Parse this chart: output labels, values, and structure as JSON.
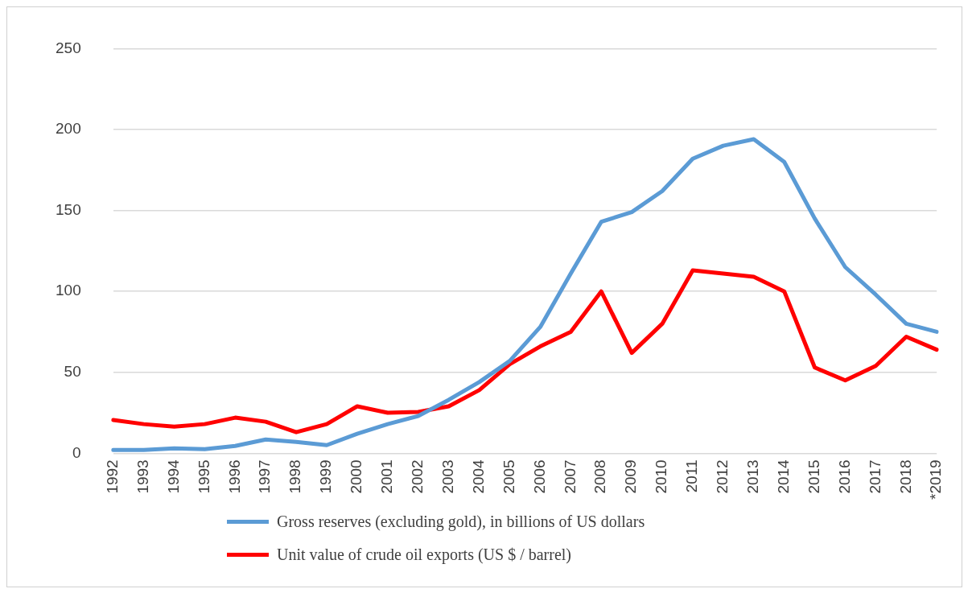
{
  "chart_data": {
    "type": "line",
    "categories": [
      "1992",
      "1993",
      "1994",
      "1995",
      "1996",
      "1997",
      "1998",
      "1999",
      "2000",
      "2001",
      "2002",
      "2003",
      "2004",
      "2005",
      "2006",
      "2007",
      "2008",
      "2009",
      "2010",
      "2011",
      "2012",
      "2013",
      "2014",
      "2015",
      "2016",
      "2017",
      "2018",
      "*2019"
    ],
    "series": [
      {
        "name": "Gross reserves (excluding gold), in billions of US dollars",
        "color": "#5b9bd5",
        "values": [
          2,
          2,
          3,
          2.5,
          4.5,
          8.5,
          7,
          5,
          12,
          18,
          23,
          33,
          44,
          57,
          78,
          111,
          143,
          149,
          162,
          182,
          190,
          194,
          180,
          145,
          115,
          98,
          80,
          75
        ]
      },
      {
        "name": "Unit value of crude oil exports (US $ / barrel)",
        "color": "#ff0000",
        "values": [
          20.5,
          18,
          16.5,
          18,
          22,
          19.5,
          13,
          18,
          29,
          25,
          25.5,
          29,
          39,
          55,
          66,
          75,
          100,
          62,
          80,
          113,
          111,
          109,
          100,
          53,
          45,
          54,
          72,
          64
        ]
      }
    ],
    "ylim": [
      0,
      250
    ],
    "yticks": [
      0,
      50,
      100,
      150,
      200,
      250
    ],
    "grid": "y",
    "legend": "bottom",
    "marker": "none",
    "line_style": "solid"
  }
}
